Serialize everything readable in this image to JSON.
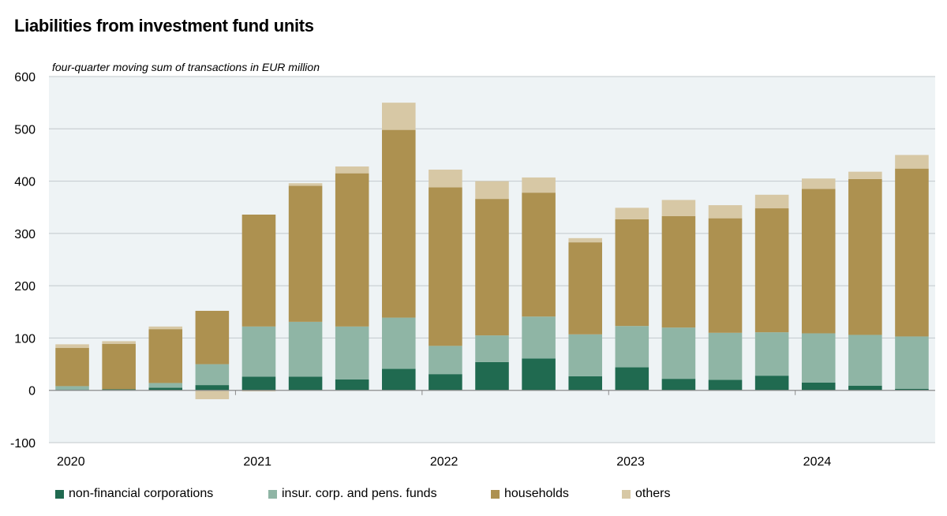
{
  "chart_data": {
    "type": "bar",
    "stacked": true,
    "title": "Liabilities from investment fund units",
    "subtitle": "four-quarter moving sum of transactions in EUR million",
    "xlabel": "",
    "ylabel": "",
    "ylim": [
      -100,
      600
    ],
    "yticks": [
      -100,
      0,
      100,
      200,
      300,
      400,
      500,
      600
    ],
    "grid": true,
    "legend_position": "bottom",
    "year_labels": [
      "2020",
      "2021",
      "2022",
      "2023",
      "2024"
    ],
    "categories": [
      "2020Q1",
      "2020Q2",
      "2020Q3",
      "2020Q4",
      "2021Q1",
      "2021Q2",
      "2021Q3",
      "2021Q4",
      "2022Q1",
      "2022Q2",
      "2022Q3",
      "2022Q4",
      "2023Q1",
      "2023Q2",
      "2023Q3",
      "2023Q4",
      "2024Q1",
      "2024Q2",
      "2024Q3"
    ],
    "series": [
      {
        "name": "non-financial corporations",
        "color": "#206a50",
        "values": [
          1,
          2,
          5,
          10,
          26,
          26,
          21,
          41,
          31,
          54,
          61,
          27,
          44,
          22,
          20,
          28,
          15,
          9,
          3
        ]
      },
      {
        "name": "insur. corp. and pens. funds",
        "color": "#8fb5a5",
        "values": [
          7,
          0,
          9,
          40,
          96,
          105,
          101,
          98,
          54,
          51,
          80,
          80,
          79,
          98,
          90,
          83,
          94,
          97,
          100
        ]
      },
      {
        "name": "households",
        "color": "#ad9150",
        "values": [
          73,
          87,
          103,
          102,
          214,
          260,
          293,
          359,
          303,
          261,
          237,
          176,
          204,
          213,
          219,
          237,
          276,
          298,
          321
        ]
      },
      {
        "name": "others",
        "color": "#d7c8a5",
        "values": [
          7,
          5,
          5,
          -17,
          -2,
          5,
          13,
          52,
          34,
          34,
          29,
          8,
          22,
          31,
          25,
          26,
          20,
          14,
          26
        ]
      }
    ]
  }
}
